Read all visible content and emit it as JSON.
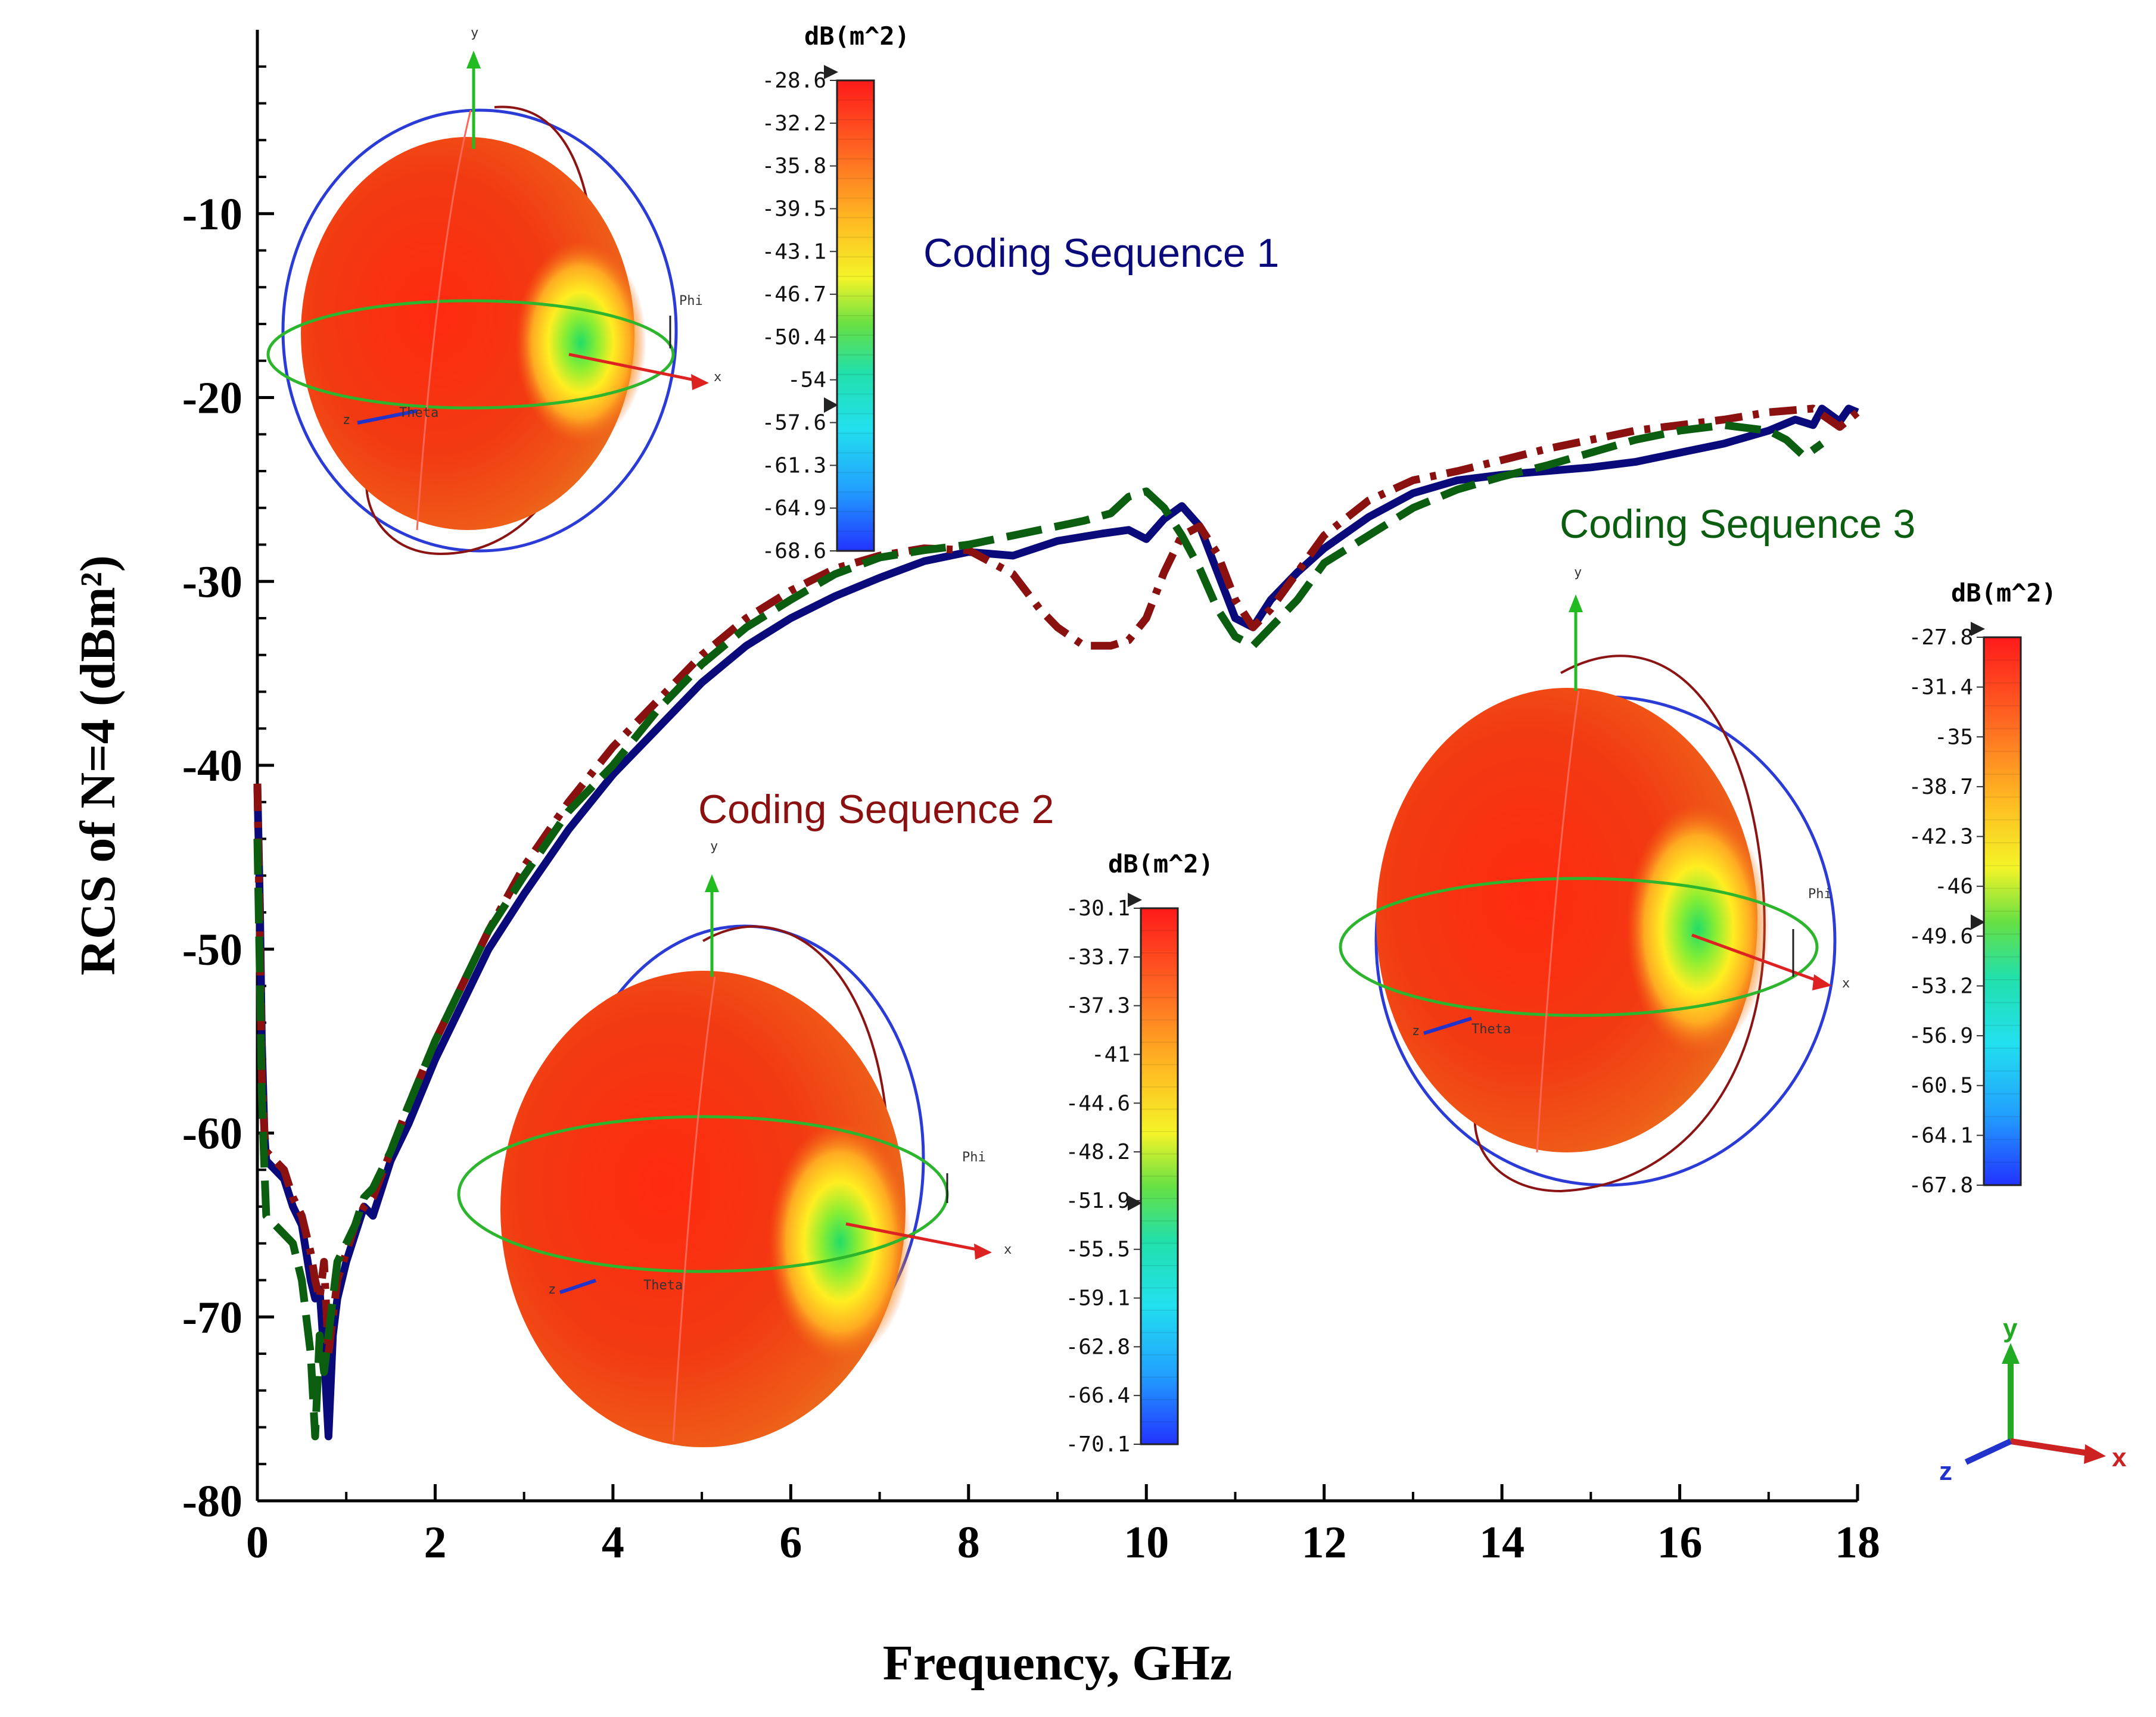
{
  "chart_data": {
    "type": "line",
    "xlabel": "Frequency, GHz",
    "ylabel": "RCS of N=4 (dBm²)",
    "xlim": [
      0,
      18
    ],
    "ylim": [
      -80,
      0
    ],
    "xticks": [
      "0",
      "2",
      "4",
      "6",
      "8",
      "10",
      "12",
      "14",
      "16",
      "18"
    ],
    "yticks": [
      "-10",
      "-20",
      "-30",
      "-40",
      "-50",
      "-60",
      "-70",
      "-80"
    ],
    "series": [
      {
        "name": "Coding Sequence 1",
        "color": "#0a0a7a",
        "dash": "solid",
        "x": [
          0.0,
          0.03,
          0.05,
          0.08,
          0.1,
          0.2,
          0.3,
          0.4,
          0.5,
          0.6,
          0.65,
          0.7,
          0.75,
          0.8,
          0.85,
          0.9,
          1.0,
          1.1,
          1.2,
          1.3,
          1.5,
          1.7,
          2.0,
          2.3,
          2.6,
          3.0,
          3.5,
          4.0,
          4.5,
          5.0,
          5.5,
          6.0,
          6.5,
          7.0,
          7.5,
          8.0,
          8.5,
          9.0,
          9.5,
          9.8,
          10.0,
          10.2,
          10.4,
          10.6,
          10.8,
          11.0,
          11.2,
          11.4,
          11.7,
          12.0,
          12.5,
          13.0,
          13.5,
          14.0,
          14.5,
          15.0,
          15.5,
          16.0,
          16.5,
          17.0,
          17.3,
          17.5,
          17.6,
          17.8,
          17.9,
          18.0
        ],
        "y": [
          -41,
          -48,
          -55,
          -60,
          -61.5,
          -62,
          -62.5,
          -64,
          -65,
          -68,
          -69,
          -68.5,
          -72,
          -76.5,
          -71,
          -69,
          -67,
          -65.5,
          -64,
          -64.5,
          -61.5,
          -59.5,
          -56,
          -53,
          -50,
          -47,
          -43.5,
          -40.5,
          -38,
          -35.5,
          -33.5,
          -32,
          -30.8,
          -29.8,
          -28.9,
          -28.4,
          -28.6,
          -27.8,
          -27.4,
          -27.2,
          -27.7,
          -26.6,
          -25.9,
          -27,
          -29.5,
          -32,
          -32.5,
          -31,
          -29.5,
          -28.2,
          -26.5,
          -25.2,
          -24.5,
          -24.2,
          -24,
          -23.8,
          -23.5,
          -23,
          -22.5,
          -21.8,
          -21.2,
          -21.5,
          -20.6,
          -21.3,
          -20.6,
          -20.8
        ]
      },
      {
        "name": "Coding Sequence 2",
        "color": "#8b1010",
        "dash": "dashdot",
        "x": [
          0.0,
          0.03,
          0.05,
          0.08,
          0.1,
          0.2,
          0.3,
          0.4,
          0.5,
          0.6,
          0.65,
          0.7,
          0.75,
          0.8,
          0.85,
          0.9,
          1.0,
          1.1,
          1.2,
          1.3,
          1.5,
          1.7,
          2.0,
          2.3,
          2.6,
          3.0,
          3.5,
          4.0,
          4.5,
          5.0,
          5.5,
          6.0,
          6.5,
          7.0,
          7.5,
          8.0,
          8.5,
          8.8,
          9.0,
          9.3,
          9.6,
          9.8,
          10.0,
          10.2,
          10.4,
          10.6,
          10.8,
          11.0,
          11.2,
          11.4,
          11.7,
          12.0,
          12.5,
          13.0,
          13.5,
          14.0,
          14.5,
          15.0,
          15.5,
          16.0,
          16.5,
          17.0,
          17.5,
          17.8,
          18.0
        ],
        "y": [
          -41,
          -50,
          -57,
          -60,
          -61,
          -61.5,
          -62,
          -63.5,
          -64.5,
          -66.5,
          -68,
          -69,
          -67,
          -72,
          -70,
          -68,
          -66.5,
          -65,
          -64,
          -63.5,
          -61,
          -58.5,
          -55,
          -52,
          -49,
          -45.5,
          -42,
          -39,
          -36.5,
          -34,
          -32,
          -30.5,
          -29.3,
          -28.6,
          -28.2,
          -28.3,
          -29.6,
          -31.5,
          -32.5,
          -33.5,
          -33.5,
          -33.2,
          -32,
          -29.5,
          -27.5,
          -27,
          -28.5,
          -31,
          -32.5,
          -31.5,
          -29.5,
          -27.5,
          -25.6,
          -24.5,
          -24,
          -23.4,
          -22.8,
          -22.3,
          -21.8,
          -21.5,
          -21.2,
          -20.8,
          -20.6,
          -21.6,
          -20.8
        ]
      },
      {
        "name": "Coding Sequence 3",
        "color": "#0b5e10",
        "dash": "dashed",
        "x": [
          0.0,
          0.03,
          0.05,
          0.08,
          0.1,
          0.2,
          0.3,
          0.4,
          0.5,
          0.6,
          0.65,
          0.7,
          0.75,
          0.8,
          0.85,
          0.9,
          1.0,
          1.1,
          1.2,
          1.3,
          1.5,
          1.7,
          2.0,
          2.3,
          2.6,
          3.0,
          3.5,
          4.0,
          4.5,
          5.0,
          5.5,
          6.0,
          6.5,
          7.0,
          7.5,
          8.0,
          8.5,
          9.0,
          9.3,
          9.6,
          9.8,
          10.0,
          10.2,
          10.4,
          10.6,
          10.8,
          11.0,
          11.2,
          11.4,
          11.7,
          12.0,
          12.5,
          13.0,
          13.5,
          14.0,
          14.5,
          15.0,
          15.5,
          16.0,
          16.5,
          17.0,
          17.2,
          17.4,
          17.6
        ],
        "y": [
          -44,
          -52,
          -58,
          -62,
          -64.5,
          -65,
          -65.5,
          -66,
          -68,
          -72,
          -76.5,
          -71,
          -73,
          -71,
          -69,
          -67,
          -66,
          -65,
          -63.5,
          -63,
          -61,
          -58.5,
          -55,
          -52,
          -49,
          -46,
          -42.5,
          -40,
          -37,
          -34.5,
          -32.5,
          -31,
          -29.6,
          -28.7,
          -28.3,
          -28,
          -27.5,
          -27,
          -26.7,
          -26.3,
          -25.4,
          -25.1,
          -26,
          -27.5,
          -29.3,
          -31.5,
          -33,
          -33.5,
          -32.5,
          -31,
          -29,
          -27.5,
          -26,
          -25,
          -24.3,
          -23.7,
          -23,
          -22.3,
          -21.8,
          -21.5,
          -21.8,
          -22.3,
          -23.2,
          -22.5
        ]
      }
    ],
    "annotations": [
      {
        "text": "Coding Sequence 1",
        "color": "#0a0a7a"
      },
      {
        "text": "Coding Sequence 2",
        "color": "#8b1010"
      },
      {
        "text": "Coding Sequence 3",
        "color": "#0b5e10"
      }
    ],
    "colorbars": [
      {
        "title": "dB(m^2)",
        "ticks": [
          "-28.6",
          "-32.2",
          "-35.8",
          "-39.5",
          "-43.1",
          "-46.7",
          "-50.4",
          "-54",
          "-57.6",
          "-61.3",
          "-64.9",
          "-68.6"
        ]
      },
      {
        "title": "dB(m^2)",
        "ticks": [
          "-30.1",
          "-33.7",
          "-37.3",
          "-41",
          "-44.6",
          "-48.2",
          "-51.9",
          "-55.5",
          "-59.1",
          "-62.8",
          "-66.4",
          "-70.1"
        ]
      },
      {
        "title": "dB(m^2)",
        "ticks": [
          "-27.8",
          "-31.4",
          "-35",
          "-38.7",
          "-42.3",
          "-46",
          "-49.6",
          "-53.2",
          "-56.9",
          "-60.5",
          "-64.1",
          "-67.8"
        ]
      }
    ],
    "pattern_axis_labels": {
      "y": "y",
      "x": "x",
      "z": "z",
      "phi": "Phi",
      "theta": "Theta"
    }
  }
}
